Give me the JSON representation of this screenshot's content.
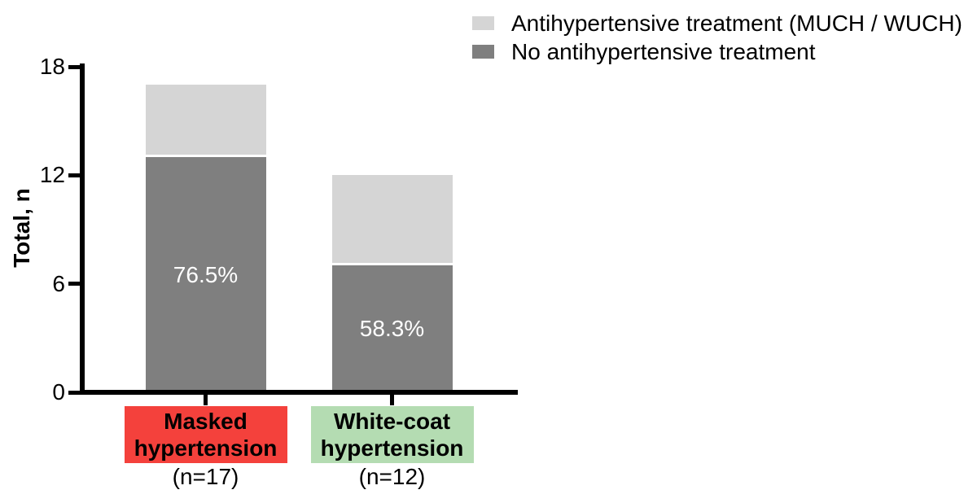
{
  "chart_data": {
    "type": "bar",
    "stacked": true,
    "title": "",
    "xlabel": "",
    "ylabel": "Total, n",
    "ylim": [
      0,
      18
    ],
    "yticks": [
      0,
      6,
      12,
      18
    ],
    "grid": false,
    "legend_position": "top-right",
    "categories": [
      {
        "name": "masked-hypertension",
        "label_lines": [
          "Masked",
          "hypertension"
        ],
        "sublabel": "(n=17)",
        "box_color": "#f4413c",
        "total": 17
      },
      {
        "name": "white-coat-hypertension",
        "label_lines": [
          "White-coat",
          "hypertension"
        ],
        "sublabel": "(n=12)",
        "box_color": "#b4dcb2",
        "total": 12
      }
    ],
    "series": [
      {
        "name": "No antihypertensive treatment",
        "color": "#7f7f7f",
        "values": [
          13,
          7
        ],
        "value_labels": [
          "76.5%",
          "58.3%"
        ]
      },
      {
        "name": "Antihypertensive treatment (MUCH / WUCH)",
        "color": "#d5d5d5",
        "values": [
          4,
          5
        ],
        "value_labels": [
          "",
          ""
        ]
      }
    ],
    "legend": [
      {
        "label": "Antihypertensive treatment (MUCH / WUCH)",
        "color": "#d5d5d5"
      },
      {
        "label": "No antihypertensive treatment",
        "color": "#7f7f7f"
      }
    ]
  }
}
